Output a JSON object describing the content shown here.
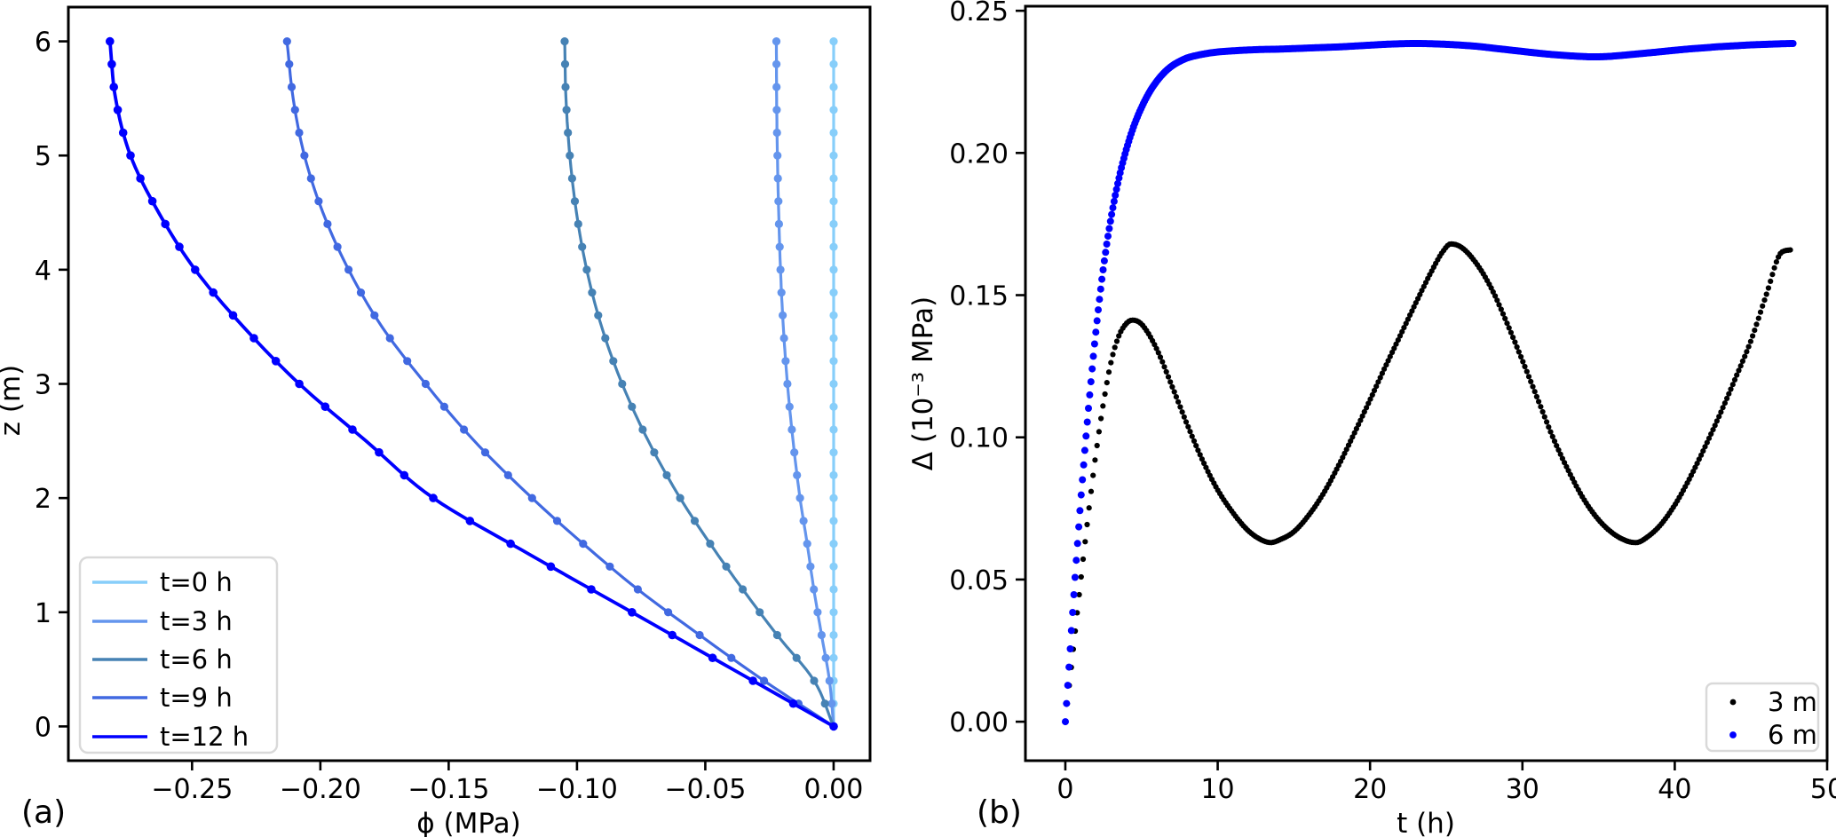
{
  "figure": {
    "background": "#ffffff",
    "spine_color": "#000000",
    "legend_border_color": "#d9d9d9"
  },
  "chart_data": [
    {
      "id": "a",
      "type": "line",
      "panel_label": "(a)",
      "xlabel": "ϕ (MPa)",
      "ylabel": "z (m)",
      "xlim": [
        -0.2982,
        0.0142
      ],
      "ylim": [
        -0.3,
        6.3
      ],
      "x_ticks": [
        -0.25,
        -0.2,
        -0.15,
        -0.1,
        -0.05,
        0.0
      ],
      "x_tick_labels": [
        "−0.25",
        "−0.20",
        "−0.15",
        "−0.10",
        "−0.05",
        "0.00"
      ],
      "y_ticks": [
        0,
        1,
        2,
        3,
        4,
        5,
        6
      ],
      "y_tick_labels": [
        "0",
        "1",
        "2",
        "3",
        "4",
        "5",
        "6"
      ],
      "grid": false,
      "legend_position": "lower left",
      "marker_interval_m": 0.2,
      "series": [
        {
          "name": "t=0 h",
          "color": "#87CEFA",
          "line_width": 3.2,
          "marker_r": 4.6,
          "points_z_phi": [
            [
              0,
              0
            ],
            [
              6,
              0
            ]
          ]
        },
        {
          "name": "t=3 h",
          "color": "#6495ED",
          "line_width": 3.2,
          "marker_r": 4.6,
          "points_z_phi": [
            [
              0,
              0
            ],
            [
              0.4,
              -0.0016
            ],
            [
              0.8,
              -0.0047
            ],
            [
              1.2,
              -0.0077
            ],
            [
              1.6,
              -0.0103
            ],
            [
              2,
              -0.0131
            ],
            [
              2.5,
              -0.0158
            ],
            [
              3,
              -0.018
            ],
            [
              3.5,
              -0.0196
            ],
            [
              4,
              -0.0207
            ],
            [
              4.5,
              -0.0214
            ],
            [
              5,
              -0.0219
            ],
            [
              5.5,
              -0.0222
            ],
            [
              6,
              -0.0223
            ]
          ]
        },
        {
          "name": "t=6 h",
          "color": "#4682B4",
          "line_width": 3.2,
          "marker_r": 4.6,
          "points_z_phi": [
            [
              0,
              0
            ],
            [
              0.4,
              -0.0076
            ],
            [
              0.8,
              -0.022
            ],
            [
              1.2,
              -0.0354
            ],
            [
              1.6,
              -0.0481
            ],
            [
              2,
              -0.0598
            ],
            [
              2.5,
              -0.0722
            ],
            [
              3,
              -0.0824
            ],
            [
              3.5,
              -0.0904
            ],
            [
              4,
              -0.0962
            ],
            [
              4.5,
              -0.1002
            ],
            [
              5,
              -0.1028
            ],
            [
              5.5,
              -0.1043
            ],
            [
              6,
              -0.1048
            ]
          ]
        },
        {
          "name": "t=9 h",
          "color": "#4169E1",
          "line_width": 3.2,
          "marker_r": 4.6,
          "points_z_phi": [
            [
              0,
              0
            ],
            [
              0.4,
              -0.0271
            ],
            [
              0.8,
              -0.0522
            ],
            [
              1.2,
              -0.0763
            ],
            [
              1.6,
              -0.0976
            ],
            [
              2,
              -0.1175
            ],
            [
              2.5,
              -0.14
            ],
            [
              3,
              -0.159
            ],
            [
              3.5,
              -0.176
            ],
            [
              4,
              -0.189
            ],
            [
              4.5,
              -0.199
            ],
            [
              5,
              -0.2062
            ],
            [
              5.5,
              -0.2106
            ],
            [
              6,
              -0.213
            ]
          ]
        },
        {
          "name": "t=12 h",
          "color": "#0000FF",
          "line_width": 3.8,
          "marker_r": 4.8,
          "points_z_phi": [
            [
              0,
              0
            ],
            [
              0.5,
              -0.0393
            ],
            [
              1,
              -0.0786
            ],
            [
              1.5,
              -0.118
            ],
            [
              2,
              -0.156
            ],
            [
              2.5,
              -0.1822
            ],
            [
              3,
              -0.2082
            ],
            [
              3.5,
              -0.23
            ],
            [
              4,
              -0.2488
            ],
            [
              4.5,
              -0.263
            ],
            [
              5,
              -0.274
            ],
            [
              5.5,
              -0.2798
            ],
            [
              6,
              -0.282
            ]
          ]
        }
      ]
    },
    {
      "id": "b",
      "type": "scatter",
      "panel_label": "(b)",
      "xlabel": "t (h)",
      "ylabel": "Δ (10⁻³ MPa)",
      "xlim": [
        -2.62,
        50.0
      ],
      "ylim": [
        -0.0137,
        0.2516
      ],
      "x_ticks": [
        0,
        10,
        20,
        30,
        40,
        50
      ],
      "x_tick_labels": [
        "0",
        "10",
        "20",
        "30",
        "40",
        "50"
      ],
      "y_ticks": [
        0.0,
        0.05,
        0.1,
        0.15,
        0.2,
        0.25
      ],
      "y_tick_labels": [
        "0.00",
        "0.05",
        "0.10",
        "0.15",
        "0.20",
        "0.25"
      ],
      "grid": false,
      "legend_position": "lower right",
      "series": [
        {
          "name": "3 m",
          "color": "#000000",
          "dot_radius": 3.1,
          "dot_dt": 0.13,
          "points_t_delta": [
            [
              0,
              0
            ],
            [
              0.5,
              0.0245
            ],
            [
              1,
              0.049
            ],
            [
              1.5,
              0.0725
            ],
            [
              2,
              0.094
            ],
            [
              2.5,
              0.112
            ],
            [
              3,
              0.1265
            ],
            [
              3.5,
              0.1355
            ],
            [
              4,
              0.14
            ],
            [
              4.4,
              0.1412
            ],
            [
              5,
              0.1398
            ],
            [
              6,
              0.131
            ],
            [
              7,
              0.118
            ],
            [
              8,
              0.1045
            ],
            [
              9,
              0.092
            ],
            [
              10,
              0.0815
            ],
            [
              11,
              0.0735
            ],
            [
              12,
              0.0672
            ],
            [
              13,
              0.0636
            ],
            [
              13.5,
              0.063
            ],
            [
              14,
              0.0638
            ],
            [
              15,
              0.0668
            ],
            [
              16,
              0.0728
            ],
            [
              17,
              0.0808
            ],
            [
              18,
              0.0908
            ],
            [
              19,
              0.1018
            ],
            [
              20,
              0.1132
            ],
            [
              21,
              0.1248
            ],
            [
              22,
              0.136
            ],
            [
              23,
              0.1472
            ],
            [
              24,
              0.158
            ],
            [
              24.8,
              0.1655
            ],
            [
              25.3,
              0.168
            ],
            [
              26,
              0.1668
            ],
            [
              27,
              0.161
            ],
            [
              28,
              0.152
            ],
            [
              29,
              0.14
            ],
            [
              30,
              0.127
            ],
            [
              31,
              0.1135
            ],
            [
              32,
              0.1
            ],
            [
              33,
              0.0885
            ],
            [
              34,
              0.0785
            ],
            [
              35,
              0.071
            ],
            [
              36,
              0.066
            ],
            [
              37,
              0.0633
            ],
            [
              37.5,
              0.063
            ],
            [
              38,
              0.0642
            ],
            [
              39,
              0.0688
            ],
            [
              40,
              0.0762
            ],
            [
              41,
              0.0858
            ],
            [
              42,
              0.0968
            ],
            [
              43,
              0.1085
            ],
            [
              44,
              0.121
            ],
            [
              45,
              0.134
            ],
            [
              46,
              0.15
            ],
            [
              47,
              0.165
            ],
            [
              47.7,
              0.166
            ]
          ]
        },
        {
          "name": "6 m",
          "color": "#0000FF",
          "dot_radius": 4.0,
          "dot_dt": 0.08,
          "points_t_delta": [
            [
              0,
              0
            ],
            [
              0.25,
              0.02
            ],
            [
              0.5,
              0.04
            ],
            [
              0.75,
              0.059
            ],
            [
              1,
              0.077
            ],
            [
              1.25,
              0.0935
            ],
            [
              1.5,
              0.109
            ],
            [
              1.75,
              0.1235
            ],
            [
              2,
              0.137
            ],
            [
              2.25,
              0.149
            ],
            [
              2.5,
              0.1597
            ],
            [
              2.75,
              0.169
            ],
            [
              3,
              0.1772
            ],
            [
              3.5,
              0.1907
            ],
            [
              4,
              0.2012
            ],
            [
              4.5,
              0.2095
            ],
            [
              5,
              0.216
            ],
            [
              5.5,
              0.2212
            ],
            [
              6,
              0.2252
            ],
            [
              6.5,
              0.2283
            ],
            [
              7,
              0.2306
            ],
            [
              7.5,
              0.2322
            ],
            [
              8,
              0.2334
            ],
            [
              9,
              0.2347
            ],
            [
              10,
              0.2355
            ],
            [
              11,
              0.2359
            ],
            [
              12,
              0.2362
            ],
            [
              13,
              0.2364
            ],
            [
              14,
              0.2365
            ],
            [
              15,
              0.2367
            ],
            [
              16,
              0.2369
            ],
            [
              17,
              0.2371
            ],
            [
              18,
              0.2373
            ],
            [
              19,
              0.2376
            ],
            [
              20,
              0.2379
            ],
            [
              21,
              0.2382
            ],
            [
              22,
              0.2384
            ],
            [
              23,
              0.2385
            ],
            [
              24,
              0.2384
            ],
            [
              25,
              0.2382
            ],
            [
              26,
              0.2379
            ],
            [
              27,
              0.2375
            ],
            [
              28,
              0.2369
            ],
            [
              29,
              0.2363
            ],
            [
              30,
              0.2357
            ],
            [
              31,
              0.2351
            ],
            [
              32,
              0.2346
            ],
            [
              33,
              0.2342
            ],
            [
              34,
              0.2339
            ],
            [
              34.5,
              0.2338
            ],
            [
              35.5,
              0.2339
            ],
            [
              36.5,
              0.2343
            ],
            [
              37.5,
              0.2348
            ],
            [
              38.5,
              0.2353
            ],
            [
              40,
              0.2361
            ],
            [
              41,
              0.2366
            ],
            [
              42,
              0.237
            ],
            [
              43,
              0.2374
            ],
            [
              44,
              0.2377
            ],
            [
              45,
              0.238
            ],
            [
              46,
              0.2382
            ],
            [
              47,
              0.2384
            ],
            [
              47.8,
              0.2385
            ]
          ]
        }
      ]
    }
  ]
}
